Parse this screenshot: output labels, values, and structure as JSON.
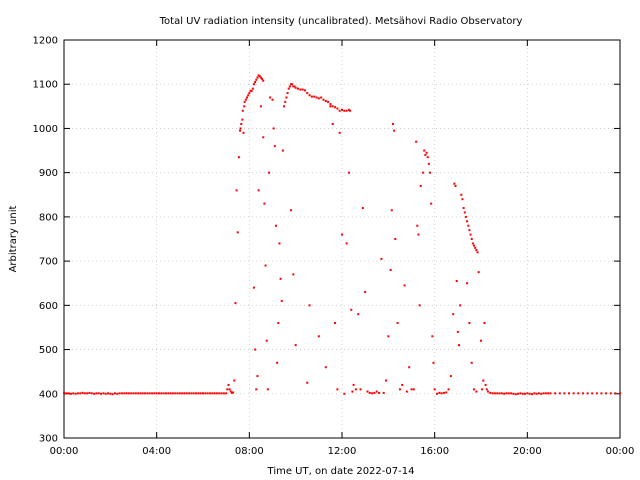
{
  "chart_data": {
    "type": "scatter",
    "title": "Total UV radiation intensity (uncalibrated). Metsähovi Radio Observatory",
    "xlabel": "Time UT, on date 2022-07-14",
    "ylabel": "Arbitrary unit",
    "xlim": [
      0,
      24
    ],
    "ylim": [
      300,
      1200
    ],
    "x_ticks": [
      {
        "value": 0,
        "label": "00:00"
      },
      {
        "value": 4,
        "label": "04:00"
      },
      {
        "value": 8,
        "label": "08:00"
      },
      {
        "value": 12,
        "label": "12:00"
      },
      {
        "value": 16,
        "label": "16:00"
      },
      {
        "value": 20,
        "label": "20:00"
      },
      {
        "value": 24,
        "label": "00:00"
      }
    ],
    "y_ticks": [
      300,
      400,
      500,
      600,
      700,
      800,
      900,
      1000,
      1100,
      1200
    ],
    "grid": true,
    "marker_color": "#ff0000",
    "series": [
      {
        "points": [
          [
            0.0,
            402
          ],
          [
            0.1,
            401
          ],
          [
            0.2,
            401
          ],
          [
            0.3,
            400
          ],
          [
            0.4,
            401
          ],
          [
            0.5,
            400
          ],
          [
            0.6,
            401
          ],
          [
            0.7,
            401
          ],
          [
            0.8,
            402
          ],
          [
            0.9,
            401
          ],
          [
            1.0,
            401
          ],
          [
            1.1,
            402
          ],
          [
            1.2,
            401
          ],
          [
            1.3,
            400
          ],
          [
            1.4,
            401
          ],
          [
            1.5,
            401
          ],
          [
            1.6,
            400
          ],
          [
            1.7,
            401
          ],
          [
            1.8,
            400
          ],
          [
            1.9,
            401
          ],
          [
            2.0,
            400
          ],
          [
            2.1,
            399
          ],
          [
            2.2,
            401
          ],
          [
            2.3,
            400
          ],
          [
            2.4,
            401
          ],
          [
            2.5,
            401
          ],
          [
            2.6,
            401
          ],
          [
            2.7,
            401
          ],
          [
            2.8,
            401
          ],
          [
            2.9,
            401
          ],
          [
            3.0,
            401
          ],
          [
            3.1,
            401
          ],
          [
            3.2,
            401
          ],
          [
            3.3,
            401
          ],
          [
            3.4,
            401
          ],
          [
            3.5,
            401
          ],
          [
            3.6,
            401
          ],
          [
            3.7,
            401
          ],
          [
            3.8,
            401
          ],
          [
            3.9,
            401
          ],
          [
            4.0,
            401
          ],
          [
            4.1,
            401
          ],
          [
            4.2,
            401
          ],
          [
            4.3,
            401
          ],
          [
            4.4,
            401
          ],
          [
            4.5,
            401
          ],
          [
            4.6,
            401
          ],
          [
            4.7,
            401
          ],
          [
            4.8,
            401
          ],
          [
            4.9,
            401
          ],
          [
            5.0,
            401
          ],
          [
            5.1,
            401
          ],
          [
            5.2,
            401
          ],
          [
            5.3,
            401
          ],
          [
            5.4,
            401
          ],
          [
            5.5,
            401
          ],
          [
            5.6,
            401
          ],
          [
            5.7,
            401
          ],
          [
            5.8,
            401
          ],
          [
            5.9,
            401
          ],
          [
            6.0,
            401
          ],
          [
            6.1,
            401
          ],
          [
            6.2,
            401
          ],
          [
            6.3,
            401
          ],
          [
            6.4,
            401
          ],
          [
            6.5,
            401
          ],
          [
            6.6,
            401
          ],
          [
            6.7,
            401
          ],
          [
            6.8,
            401
          ],
          [
            6.9,
            401
          ],
          [
            7.0,
            401
          ],
          [
            7.05,
            410
          ],
          [
            7.1,
            420
          ],
          [
            7.15,
            410
          ],
          [
            7.2,
            405
          ],
          [
            7.25,
            402
          ],
          [
            7.3,
            403
          ],
          [
            7.35,
            430
          ],
          [
            7.4,
            605
          ],
          [
            7.45,
            860
          ],
          [
            7.5,
            765
          ],
          [
            7.55,
            935
          ],
          [
            7.6,
            995
          ],
          [
            7.62,
            1000
          ],
          [
            7.65,
            1010
          ],
          [
            7.7,
            1020
          ],
          [
            7.72,
            1040
          ],
          [
            7.75,
            990
          ],
          [
            7.78,
            1050
          ],
          [
            7.8,
            1060
          ],
          [
            7.85,
            1065
          ],
          [
            7.9,
            1070
          ],
          [
            7.95,
            1075
          ],
          [
            8.0,
            1080
          ],
          [
            8.05,
            1085
          ],
          [
            8.1,
            1085
          ],
          [
            8.15,
            1090
          ],
          [
            8.2,
            1100
          ],
          [
            8.25,
            1105
          ],
          [
            8.3,
            1110
          ],
          [
            8.35,
            1115
          ],
          [
            8.4,
            1120
          ],
          [
            8.45,
            1118
          ],
          [
            8.5,
            1115
          ],
          [
            8.55,
            1112
          ],
          [
            8.6,
            1108
          ],
          [
            8.2,
            640
          ],
          [
            8.25,
            500
          ],
          [
            8.3,
            410
          ],
          [
            8.35,
            440
          ],
          [
            8.4,
            860
          ],
          [
            8.5,
            1050
          ],
          [
            8.6,
            980
          ],
          [
            8.65,
            830
          ],
          [
            8.7,
            690
          ],
          [
            8.75,
            520
          ],
          [
            8.8,
            410
          ],
          [
            8.85,
            900
          ],
          [
            8.9,
            1070
          ],
          [
            9.0,
            1065
          ],
          [
            9.05,
            1000
          ],
          [
            9.1,
            960
          ],
          [
            9.15,
            780
          ],
          [
            9.2,
            470
          ],
          [
            9.25,
            560
          ],
          [
            9.3,
            740
          ],
          [
            9.35,
            660
          ],
          [
            9.4,
            610
          ],
          [
            9.45,
            950
          ],
          [
            9.5,
            1050
          ],
          [
            9.55,
            1060
          ],
          [
            9.6,
            1070
          ],
          [
            9.65,
            1080
          ],
          [
            9.7,
            1090
          ],
          [
            9.75,
            1095
          ],
          [
            9.8,
            1100
          ],
          [
            9.85,
            1100
          ],
          [
            9.9,
            1095
          ],
          [
            9.95,
            1095
          ],
          [
            10.0,
            1092
          ],
          [
            10.1,
            1090
          ],
          [
            10.2,
            1088
          ],
          [
            10.3,
            1088
          ],
          [
            10.4,
            1086
          ],
          [
            10.5,
            1080
          ],
          [
            10.6,
            1075
          ],
          [
            10.7,
            1072
          ],
          [
            10.8,
            1072
          ],
          [
            10.9,
            1070
          ],
          [
            11.0,
            1068
          ],
          [
            11.1,
            1070
          ],
          [
            11.2,
            1065
          ],
          [
            11.3,
            1062
          ],
          [
            11.4,
            1060
          ],
          [
            11.5,
            1055
          ],
          [
            11.6,
            1050
          ],
          [
            11.7,
            1048
          ],
          [
            11.8,
            1045
          ],
          [
            11.9,
            1040
          ],
          [
            12.0,
            1042
          ],
          [
            12.1,
            1040
          ],
          [
            12.2,
            1040
          ],
          [
            12.3,
            1042
          ],
          [
            12.35,
            1040
          ],
          [
            9.8,
            815
          ],
          [
            9.9,
            670
          ],
          [
            10.0,
            510
          ],
          [
            10.5,
            425
          ],
          [
            10.6,
            600
          ],
          [
            11.0,
            530
          ],
          [
            11.3,
            460
          ],
          [
            11.5,
            1050
          ],
          [
            11.6,
            1010
          ],
          [
            11.7,
            560
          ],
          [
            11.8,
            410
          ],
          [
            11.9,
            990
          ],
          [
            12.0,
            760
          ],
          [
            12.1,
            400
          ],
          [
            12.2,
            740
          ],
          [
            12.3,
            900
          ],
          [
            12.4,
            590
          ],
          [
            12.45,
            405
          ],
          [
            12.5,
            420
          ],
          [
            12.6,
            410
          ],
          [
            12.7,
            580
          ],
          [
            12.8,
            410
          ],
          [
            12.9,
            820
          ],
          [
            13.0,
            630
          ],
          [
            13.1,
            405
          ],
          [
            13.2,
            402
          ],
          [
            13.3,
            401
          ],
          [
            13.4,
            402
          ],
          [
            13.5,
            405
          ],
          [
            13.6,
            402
          ],
          [
            13.7,
            705
          ],
          [
            13.8,
            402
          ],
          [
            13.9,
            430
          ],
          [
            14.0,
            530
          ],
          [
            14.1,
            680
          ],
          [
            14.15,
            815
          ],
          [
            14.2,
            1010
          ],
          [
            14.25,
            995
          ],
          [
            14.3,
            750
          ],
          [
            14.4,
            560
          ],
          [
            14.5,
            410
          ],
          [
            14.6,
            420
          ],
          [
            14.7,
            645
          ],
          [
            14.8,
            405
          ],
          [
            14.9,
            460
          ],
          [
            15.0,
            410
          ],
          [
            15.1,
            410
          ],
          [
            15.2,
            970
          ],
          [
            15.25,
            780
          ],
          [
            15.3,
            760
          ],
          [
            15.35,
            600
          ],
          [
            15.4,
            870
          ],
          [
            15.5,
            900
          ],
          [
            15.55,
            950
          ],
          [
            15.6,
            940
          ],
          [
            15.65,
            945
          ],
          [
            15.7,
            935
          ],
          [
            15.75,
            920
          ],
          [
            15.8,
            900
          ],
          [
            15.85,
            830
          ],
          [
            15.9,
            530
          ],
          [
            15.95,
            470
          ],
          [
            16.0,
            410
          ],
          [
            16.1,
            400
          ],
          [
            16.2,
            402
          ],
          [
            16.3,
            401
          ],
          [
            16.4,
            402
          ],
          [
            16.5,
            403
          ],
          [
            16.6,
            410
          ],
          [
            16.7,
            440
          ],
          [
            16.8,
            580
          ],
          [
            16.85,
            875
          ],
          [
            16.9,
            870
          ],
          [
            16.95,
            655
          ],
          [
            17.0,
            540
          ],
          [
            17.05,
            510
          ],
          [
            17.1,
            600
          ],
          [
            17.15,
            850
          ],
          [
            17.2,
            840
          ],
          [
            17.25,
            820
          ],
          [
            17.3,
            810
          ],
          [
            17.35,
            800
          ],
          [
            17.4,
            790
          ],
          [
            17.45,
            780
          ],
          [
            17.5,
            770
          ],
          [
            17.55,
            760
          ],
          [
            17.6,
            750
          ],
          [
            17.65,
            740
          ],
          [
            17.7,
            735
          ],
          [
            17.75,
            730
          ],
          [
            17.8,
            725
          ],
          [
            17.85,
            720
          ],
          [
            17.4,
            650
          ],
          [
            17.5,
            560
          ],
          [
            17.6,
            470
          ],
          [
            17.7,
            410
          ],
          [
            17.8,
            405
          ],
          [
            17.9,
            675
          ],
          [
            18.0,
            520
          ],
          [
            18.05,
            410
          ],
          [
            18.1,
            430
          ],
          [
            18.15,
            560
          ],
          [
            18.2,
            420
          ],
          [
            18.25,
            410
          ],
          [
            18.3,
            405
          ],
          [
            18.4,
            402
          ],
          [
            18.5,
            401
          ],
          [
            18.6,
            401
          ],
          [
            18.7,
            401
          ],
          [
            18.8,
            401
          ],
          [
            18.9,
            401
          ],
          [
            19.0,
            400
          ],
          [
            19.1,
            401
          ],
          [
            19.2,
            401
          ],
          [
            19.3,
            401
          ],
          [
            19.4,
            400
          ],
          [
            19.5,
            399
          ],
          [
            19.6,
            400
          ],
          [
            19.7,
            401
          ],
          [
            19.8,
            400
          ],
          [
            19.9,
            400
          ],
          [
            20.0,
            401
          ],
          [
            20.1,
            400
          ],
          [
            20.2,
            399
          ],
          [
            20.3,
            401
          ],
          [
            20.4,
            400
          ],
          [
            20.5,
            401
          ],
          [
            20.6,
            400
          ],
          [
            20.7,
            401
          ],
          [
            20.8,
            401
          ],
          [
            20.9,
            401
          ],
          [
            21.0,
            401
          ],
          [
            21.2,
            401
          ],
          [
            21.4,
            401
          ],
          [
            21.6,
            401
          ],
          [
            21.8,
            401
          ],
          [
            22.0,
            401
          ],
          [
            22.2,
            401
          ],
          [
            22.4,
            401
          ],
          [
            22.6,
            401
          ],
          [
            22.8,
            401
          ],
          [
            23.0,
            401
          ],
          [
            23.2,
            401
          ],
          [
            23.4,
            401
          ],
          [
            23.6,
            401
          ],
          [
            23.8,
            401
          ],
          [
            24.0,
            401
          ]
        ]
      }
    ]
  }
}
